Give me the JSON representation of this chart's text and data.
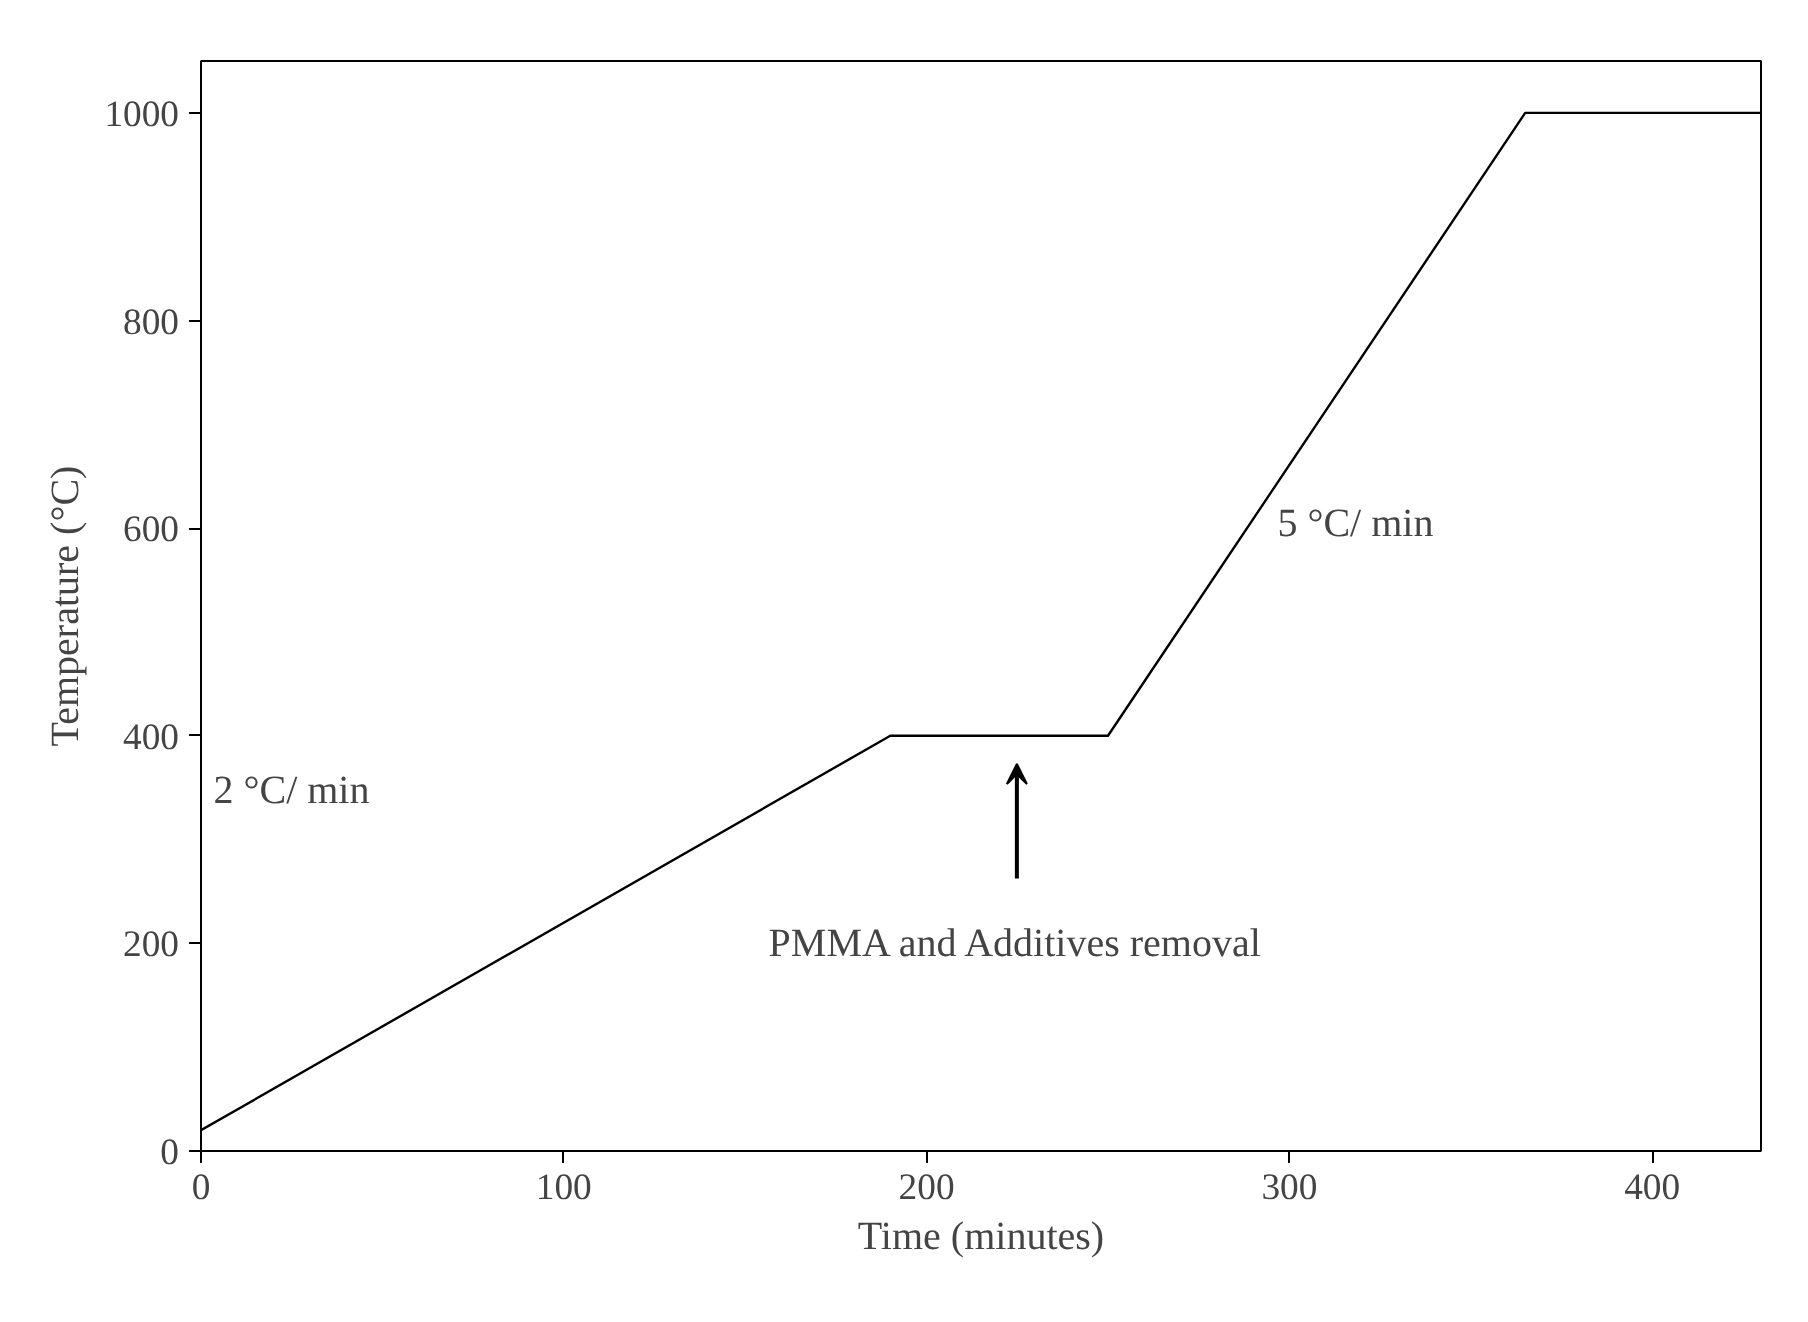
{
  "chart_data": {
    "type": "line",
    "xlabel": "Time (minutes)",
    "ylabel": "Temperature (°C)",
    "x": [
      0,
      190,
      250,
      365,
      430
    ],
    "series": [
      {
        "color": "#000000",
        "values": [
          20,
          400,
          400,
          1000,
          1000
        ]
      }
    ],
    "xlim": [
      0,
      430
    ],
    "ylim": [
      0,
      1050
    ],
    "xticks": [
      0,
      100,
      200,
      300,
      400
    ],
    "yticks": [
      0,
      200,
      400,
      600,
      800,
      1000
    ],
    "grid": false,
    "marker": "none",
    "line_style": "solid",
    "annotations": [
      "2 °C/ min",
      "5 °C/ min",
      "PMMA and Additives removal"
    ]
  }
}
